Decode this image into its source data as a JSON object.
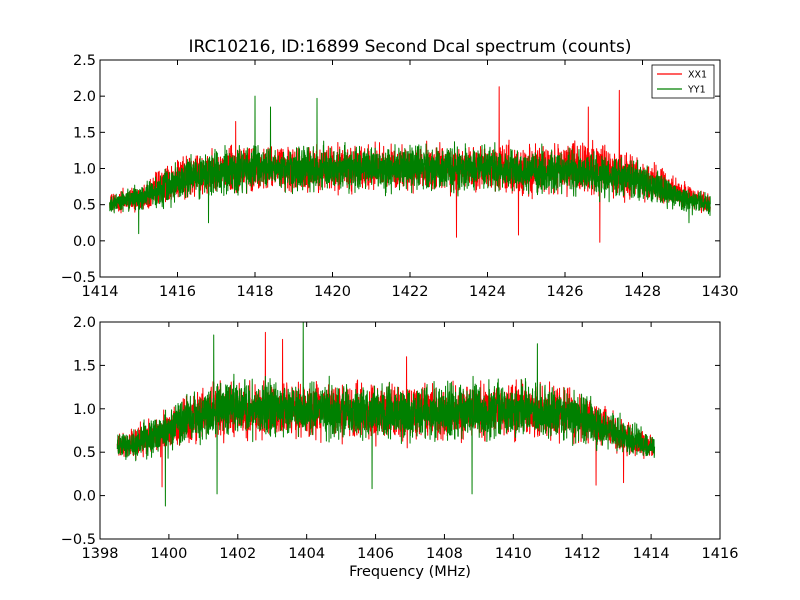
{
  "figure": {
    "title": "IRC10216, ID:16899 Second Dcal spectrum (counts)",
    "xlabel": "Frequency (MHz)"
  },
  "chart_data": [
    {
      "type": "line",
      "title": "IRC10216, ID:16899 Second Dcal spectrum (counts)",
      "xlabel": "",
      "ylabel": "",
      "xlim": [
        1414,
        1430
      ],
      "ylim": [
        -0.5,
        2.5
      ],
      "xticks": [
        "1414",
        "1416",
        "1418",
        "1420",
        "1422",
        "1424",
        "1426",
        "1428",
        "1430"
      ],
      "yticks": [
        "−0.5",
        "0.0",
        "0.5",
        "1.0",
        "1.5",
        "2.0",
        "2.5"
      ],
      "x_range": [
        1414.25,
        1429.75
      ],
      "grid": false,
      "legend": "top-right",
      "series": [
        {
          "name": "XX1",
          "color": "#ff0000",
          "envelope": {
            "x": [
              1414.25,
              1415,
              1416,
              1417,
              1418,
              1420,
              1422,
              1424,
              1426,
              1427,
              1428,
              1429,
              1429.75
            ],
            "center": [
              0.5,
              0.6,
              0.85,
              0.95,
              1.0,
              1.0,
              1.0,
              1.0,
              1.0,
              1.0,
              0.85,
              0.65,
              0.5
            ],
            "spread": [
              0.2,
              0.25,
              0.4,
              0.45,
              0.45,
              0.45,
              0.45,
              0.45,
              0.5,
              0.5,
              0.4,
              0.25,
              0.2
            ]
          },
          "peaks": [
            [
              1424.3,
              2.13
            ],
            [
              1427.4,
              2.08
            ],
            [
              1426.6,
              1.85
            ],
            [
              1417.5,
              1.65
            ]
          ],
          "dips": [
            [
              1426.9,
              -0.02
            ],
            [
              1423.2,
              0.05
            ],
            [
              1424.8,
              0.08
            ]
          ]
        },
        {
          "name": "YY1",
          "color": "#008000",
          "envelope": {
            "x": [
              1414.25,
              1415,
              1416,
              1417,
              1418,
              1420,
              1422,
              1424,
              1426,
              1427,
              1428,
              1429,
              1429.75
            ],
            "center": [
              0.5,
              0.6,
              0.8,
              0.95,
              1.0,
              1.0,
              1.0,
              1.0,
              0.95,
              0.9,
              0.8,
              0.6,
              0.5
            ],
            "spread": [
              0.2,
              0.25,
              0.4,
              0.45,
              0.45,
              0.45,
              0.45,
              0.45,
              0.45,
              0.45,
              0.35,
              0.25,
              0.2
            ]
          },
          "peaks": [
            [
              1418.0,
              2.0
            ],
            [
              1419.6,
              1.97
            ],
            [
              1418.4,
              1.85
            ]
          ],
          "dips": [
            [
              1415.0,
              0.1
            ],
            [
              1416.8,
              0.25
            ],
            [
              1429.2,
              0.25
            ]
          ]
        }
      ]
    },
    {
      "type": "line",
      "title": "",
      "xlabel": "Frequency (MHz)",
      "ylabel": "",
      "xlim": [
        1398,
        1416
      ],
      "ylim": [
        -0.5,
        2.0
      ],
      "xticks": [
        "1398",
        "1400",
        "1402",
        "1404",
        "1406",
        "1408",
        "1410",
        "1412",
        "1414",
        "1416"
      ],
      "yticks": [
        "−0.5",
        "0.0",
        "0.5",
        "1.0",
        "1.5",
        "2.0"
      ],
      "x_range": [
        1398.5,
        1414.1
      ],
      "grid": false,
      "legend": "none",
      "series": [
        {
          "name": "XX1",
          "color": "#ff0000",
          "envelope": {
            "x": [
              1398.5,
              1399,
              1400,
              1401,
              1402,
              1404,
              1406,
              1408,
              1410,
              1412,
              1413,
              1414.1
            ],
            "center": [
              0.55,
              0.6,
              0.75,
              0.95,
              1.0,
              1.0,
              0.95,
              0.95,
              1.0,
              0.9,
              0.7,
              0.55
            ],
            "spread": [
              0.2,
              0.25,
              0.35,
              0.45,
              0.45,
              0.45,
              0.45,
              0.45,
              0.45,
              0.4,
              0.3,
              0.2
            ]
          },
          "peaks": [
            [
              1402.8,
              1.88
            ],
            [
              1403.3,
              1.8
            ],
            [
              1406.9,
              1.6
            ]
          ],
          "dips": [
            [
              1399.8,
              0.1
            ],
            [
              1413.2,
              0.15
            ],
            [
              1412.4,
              0.12
            ]
          ]
        },
        {
          "name": "YY1",
          "color": "#008000",
          "envelope": {
            "x": [
              1398.5,
              1399,
              1400,
              1401,
              1402,
              1404,
              1406,
              1408,
              1410,
              1412,
              1413,
              1414.1
            ],
            "center": [
              0.55,
              0.6,
              0.75,
              0.95,
              1.0,
              1.0,
              0.95,
              0.95,
              1.0,
              0.9,
              0.7,
              0.55
            ],
            "spread": [
              0.2,
              0.25,
              0.35,
              0.45,
              0.45,
              0.45,
              0.45,
              0.45,
              0.45,
              0.4,
              0.3,
              0.2
            ]
          },
          "peaks": [
            [
              1403.9,
              2.0
            ],
            [
              1401.3,
              1.85
            ],
            [
              1410.7,
              1.75
            ],
            [
              1413.1,
              0.95
            ]
          ],
          "dips": [
            [
              1399.9,
              -0.12
            ],
            [
              1401.4,
              0.02
            ],
            [
              1408.8,
              0.02
            ],
            [
              1405.9,
              0.08
            ]
          ]
        }
      ]
    }
  ]
}
